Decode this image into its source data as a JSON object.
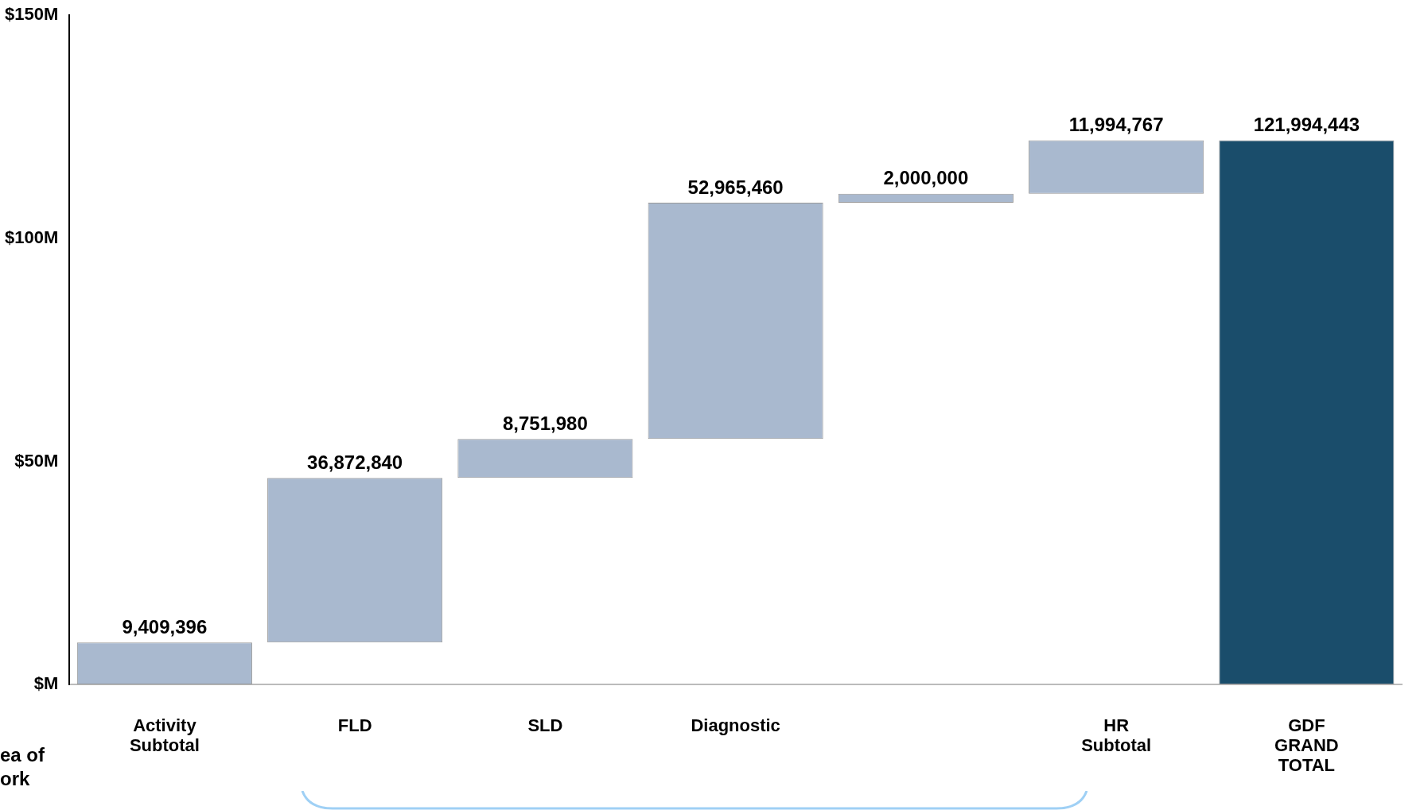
{
  "chart_data": {
    "type": "bar",
    "categories": [
      "Activity Subtotal",
      "FLD",
      "SLD",
      "Diagnostic",
      null,
      "HR Subtotal",
      "GDF GRAND TOTAL"
    ],
    "values": [
      9409396,
      36872840,
      8751980,
      52965460,
      2000000,
      11994767,
      121994443
    ],
    "base": [
      0,
      9409396,
      46282236,
      55034216,
      107999676,
      109999676,
      0
    ],
    "colors": [
      "#a9b9cf",
      "#a9b9cf",
      "#a9b9cf",
      "#a9b9cf",
      "#a9b9cf",
      "#a9b9cf",
      "#1a4d6b"
    ],
    "ylim": [
      0,
      150000000
    ],
    "yticks": [
      {
        "value": 0,
        "label": "$M"
      },
      {
        "value": 50000000,
        "label": "$50M"
      },
      {
        "value": 100000000,
        "label": "$100M"
      },
      {
        "value": 150000000,
        "label": "$150M"
      }
    ],
    "value_labels": [
      "9,409,396",
      "36,872,840",
      "8,751,980",
      "52,965,460",
      "2,000,000",
      "11,994,767",
      "121,994,443"
    ],
    "annotations": [
      "ea of ork"
    ],
    "grid": false,
    "legend": false
  }
}
